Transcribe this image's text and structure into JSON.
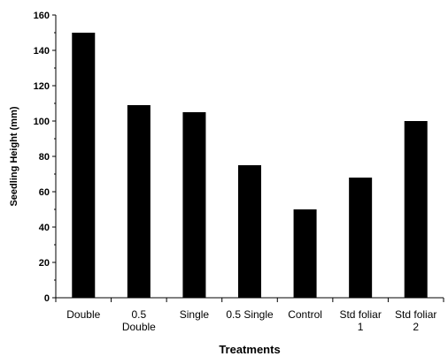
{
  "chart_data": {
    "type": "bar",
    "categories": [
      [
        "Double"
      ],
      [
        "0.5",
        "Double"
      ],
      [
        "Single"
      ],
      [
        "0.5 Single"
      ],
      [
        "Control"
      ],
      [
        "Std foliar",
        "1"
      ],
      [
        "Std foliar",
        "2"
      ]
    ],
    "values": [
      150,
      109,
      105,
      75,
      50,
      68,
      100
    ],
    "xlabel": "Treatments",
    "ylabel": "Seedling Height (mm)",
    "ylim": [
      0,
      160
    ],
    "yticks": [
      0,
      20,
      40,
      60,
      80,
      100,
      120,
      140,
      160
    ],
    "grid": false,
    "legend": "none",
    "bar_color": "#000000"
  }
}
